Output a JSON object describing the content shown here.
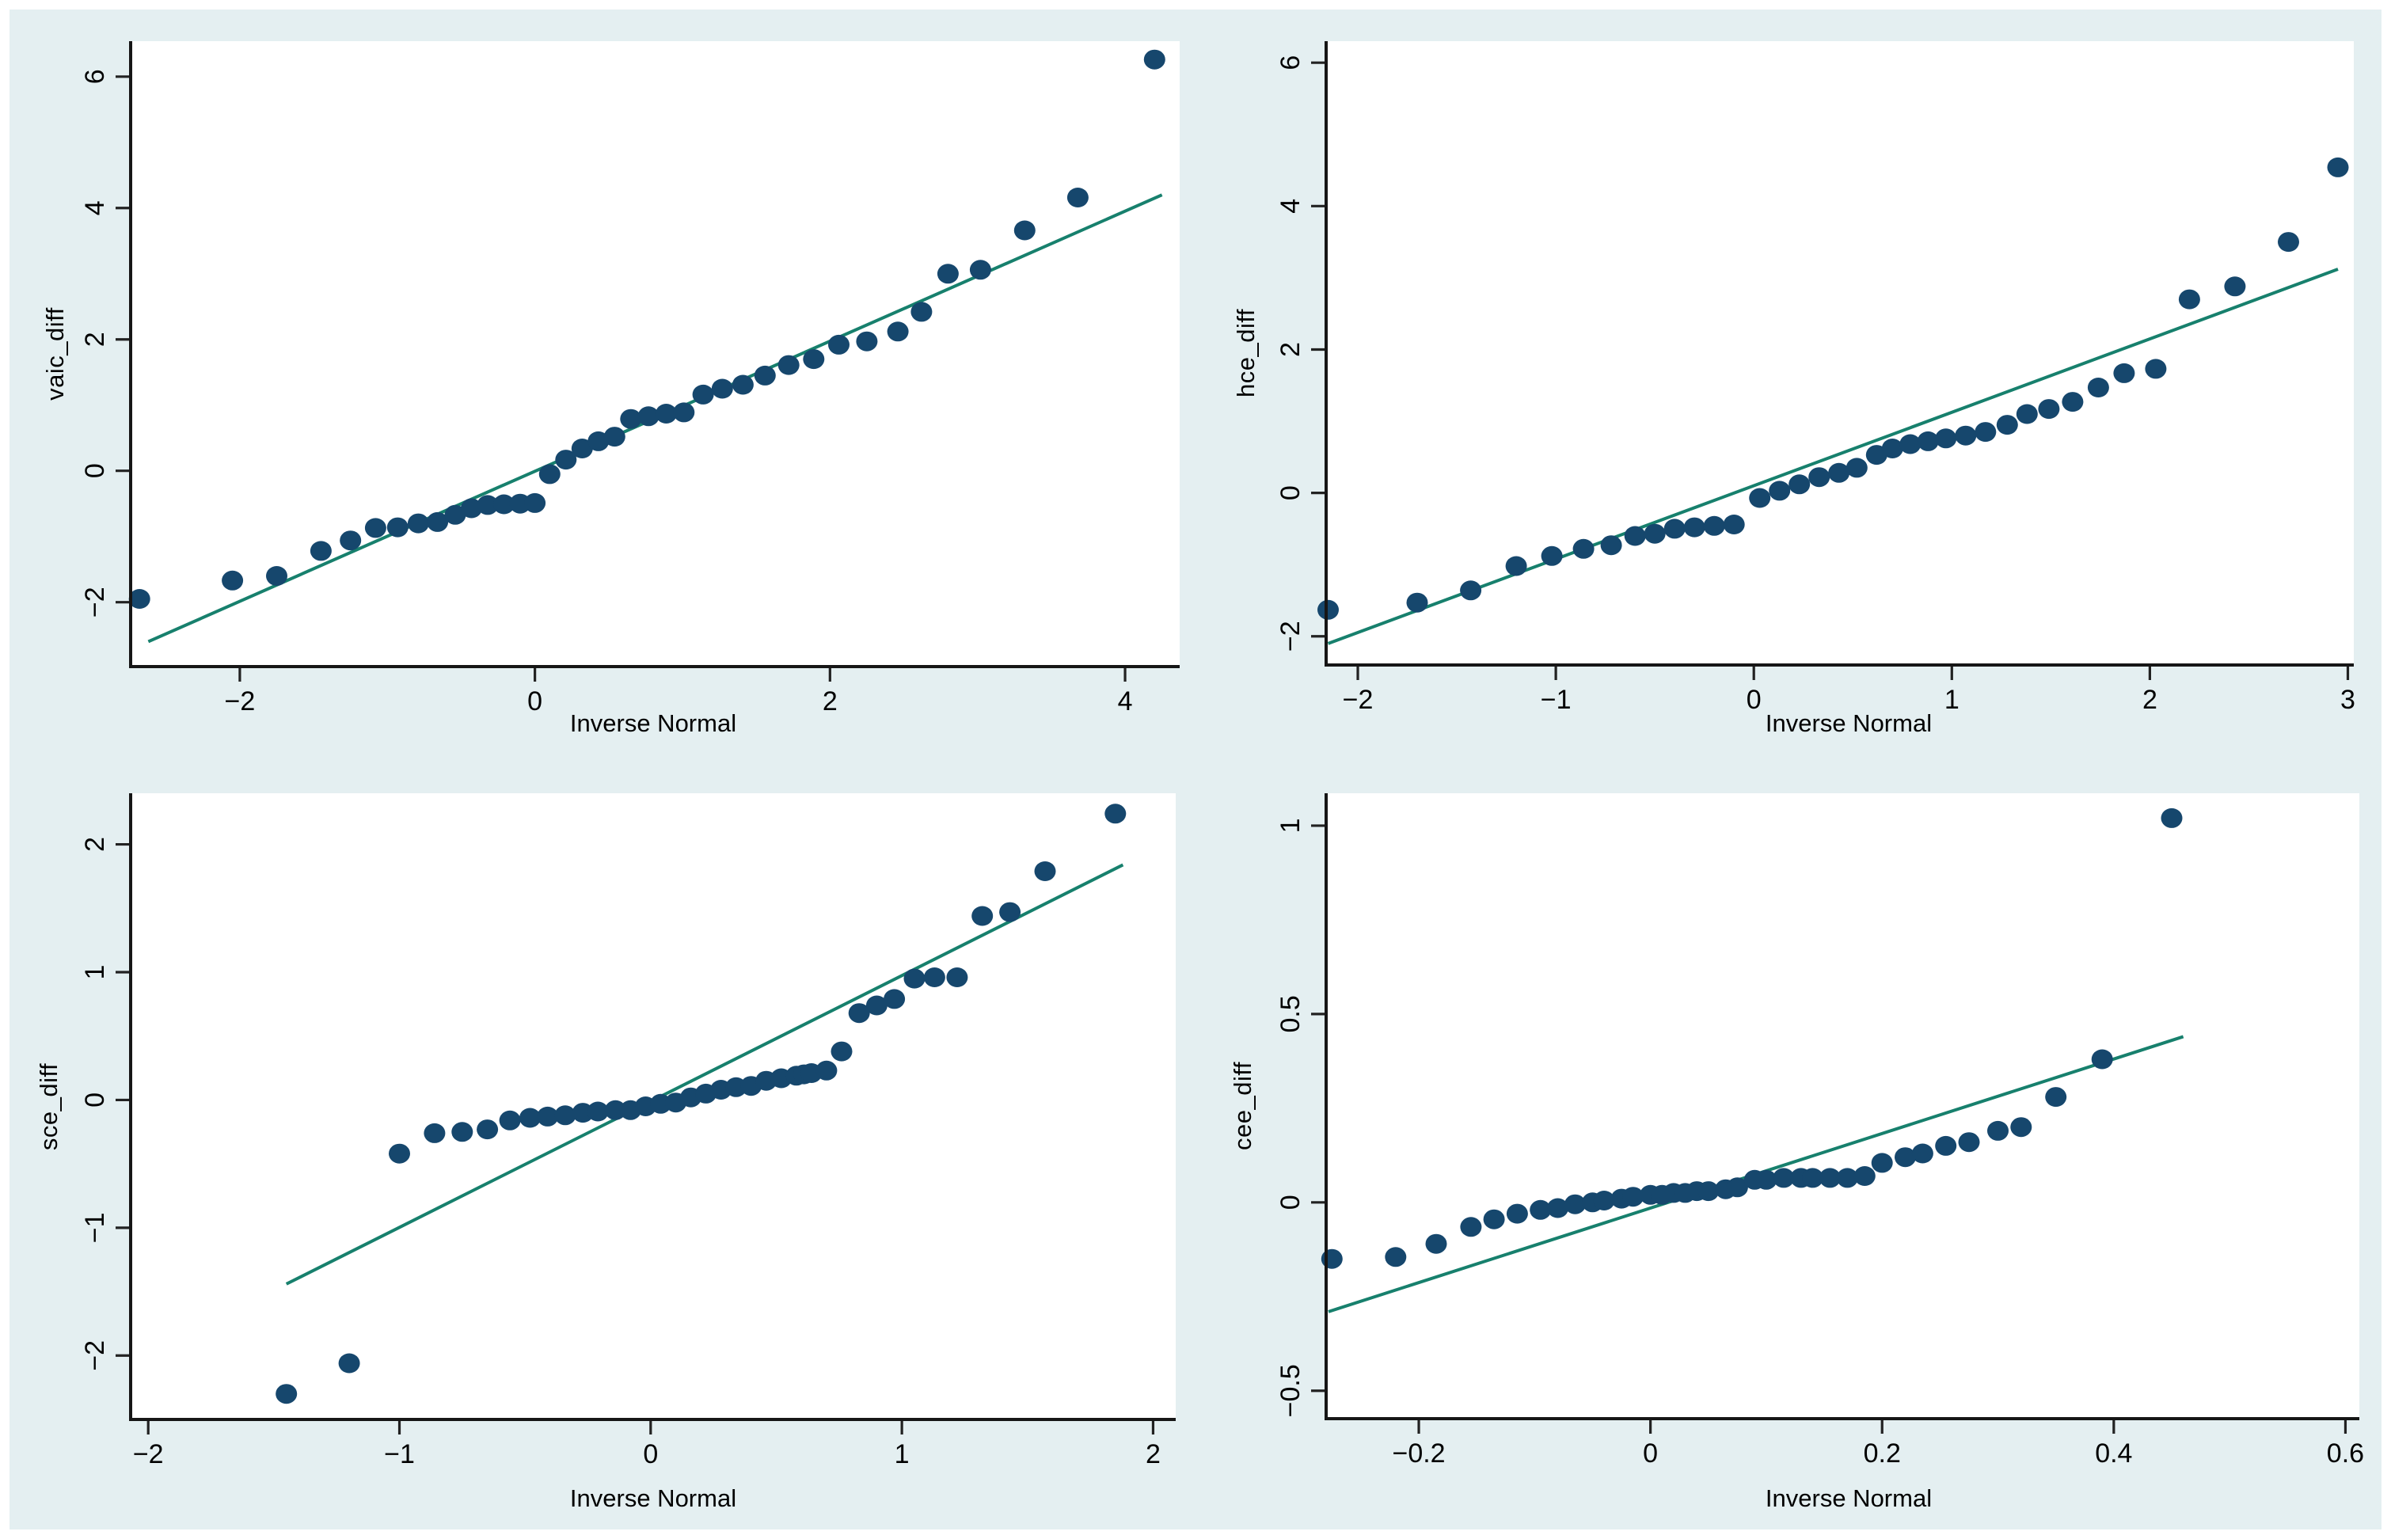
{
  "figure": {
    "background_color": "#e4eff1",
    "plot_background_color": "#ffffff",
    "axis_color": "#161616",
    "tick_color": "#222222",
    "marker_color": "#16476d",
    "line_color": "#17806d",
    "text_color": "#000000"
  },
  "chart_data": [
    {
      "type": "scatter",
      "name": "qnorm-vaic_diff",
      "ylabel": "vaic_diff",
      "xlabel": "Inverse Normal",
      "legend": "none",
      "grid": false,
      "xlim": [
        -2.74,
        4.37
      ],
      "ylim": [
        -2.98,
        6.54
      ],
      "xtick_values": [
        -2,
        0,
        2,
        4
      ],
      "xtick_labels": [
        "−2",
        "0",
        "2",
        "4"
      ],
      "ytick_values": [
        -2,
        0,
        2,
        4,
        6
      ],
      "ytick_labels": [
        "−2",
        "0",
        "2",
        "4",
        "6"
      ],
      "ref_line": {
        "x1": -2.62,
        "y1": -2.6,
        "x2": 4.25,
        "y2": 4.2
      },
      "points": [
        [
          -2.68,
          -1.95
        ],
        [
          -2.05,
          -1.67
        ],
        [
          -1.75,
          -1.6
        ],
        [
          -1.45,
          -1.22
        ],
        [
          -1.25,
          -1.06
        ],
        [
          -1.08,
          -0.87
        ],
        [
          -0.93,
          -0.86
        ],
        [
          -0.79,
          -0.8
        ],
        [
          -0.66,
          -0.78
        ],
        [
          -0.54,
          -0.67
        ],
        [
          -0.43,
          -0.57
        ],
        [
          -0.32,
          -0.52
        ],
        [
          -0.21,
          -0.51
        ],
        [
          -0.1,
          -0.5
        ],
        [
          0.0,
          -0.49
        ],
        [
          0.1,
          -0.05
        ],
        [
          0.21,
          0.17
        ],
        [
          0.32,
          0.34
        ],
        [
          0.43,
          0.45
        ],
        [
          0.54,
          0.52
        ],
        [
          0.65,
          0.79
        ],
        [
          0.77,
          0.83
        ],
        [
          0.89,
          0.87
        ],
        [
          1.01,
          0.89
        ],
        [
          1.14,
          1.16
        ],
        [
          1.27,
          1.25
        ],
        [
          1.41,
          1.31
        ],
        [
          1.56,
          1.45
        ],
        [
          1.72,
          1.61
        ],
        [
          1.89,
          1.7
        ],
        [
          2.06,
          1.92
        ],
        [
          2.25,
          1.97
        ],
        [
          2.46,
          2.12
        ],
        [
          2.62,
          2.42
        ],
        [
          2.8,
          3.0
        ],
        [
          3.02,
          3.06
        ],
        [
          3.32,
          3.66
        ],
        [
          3.68,
          4.16
        ],
        [
          4.2,
          6.26
        ]
      ]
    },
    {
      "type": "scatter",
      "name": "qnorm-hce_diff",
      "ylabel": "hce_diff",
      "xlabel": "Inverse Normal",
      "legend": "none",
      "grid": false,
      "xlim": [
        -2.16,
        3.03
      ],
      "ylim": [
        -2.4,
        6.3
      ],
      "xtick_values": [
        -2,
        -1,
        0,
        1,
        2,
        3
      ],
      "xtick_labels": [
        "−2",
        "−1",
        "0",
        "1",
        "2",
        "3"
      ],
      "ytick_values": [
        -2,
        0,
        2,
        4,
        6
      ],
      "ytick_labels": [
        "−2",
        "0",
        "2",
        "4",
        "6"
      ],
      "ref_line": {
        "x1": -2.15,
        "y1": -2.1,
        "x2": 2.95,
        "y2": 3.12
      },
      "points": [
        [
          -2.15,
          -1.63
        ],
        [
          -1.7,
          -1.53
        ],
        [
          -1.43,
          -1.36
        ],
        [
          -1.2,
          -1.02
        ],
        [
          -1.02,
          -0.88
        ],
        [
          -0.86,
          -0.78
        ],
        [
          -0.72,
          -0.73
        ],
        [
          -0.6,
          -0.6
        ],
        [
          -0.5,
          -0.57
        ],
        [
          -0.4,
          -0.5
        ],
        [
          -0.3,
          -0.48
        ],
        [
          -0.2,
          -0.46
        ],
        [
          -0.1,
          -0.44
        ],
        [
          0.03,
          -0.07
        ],
        [
          0.13,
          0.03
        ],
        [
          0.23,
          0.12
        ],
        [
          0.33,
          0.22
        ],
        [
          0.43,
          0.28
        ],
        [
          0.52,
          0.35
        ],
        [
          0.62,
          0.53
        ],
        [
          0.7,
          0.62
        ],
        [
          0.79,
          0.68
        ],
        [
          0.88,
          0.72
        ],
        [
          0.97,
          0.76
        ],
        [
          1.07,
          0.8
        ],
        [
          1.17,
          0.85
        ],
        [
          1.28,
          0.95
        ],
        [
          1.38,
          1.1
        ],
        [
          1.49,
          1.17
        ],
        [
          1.61,
          1.27
        ],
        [
          1.74,
          1.47
        ],
        [
          1.87,
          1.67
        ],
        [
          2.03,
          1.73
        ],
        [
          2.2,
          2.7
        ],
        [
          2.43,
          2.88
        ],
        [
          2.7,
          3.5
        ],
        [
          2.95,
          4.54
        ]
      ]
    },
    {
      "type": "scatter",
      "name": "qnorm-sce_diff",
      "ylabel": "sce_diff",
      "xlabel": "Inverse Normal",
      "legend": "none",
      "grid": false,
      "xlim": [
        -2.07,
        2.09
      ],
      "ylim": [
        -2.5,
        2.4
      ],
      "xtick_values": [
        -2,
        -1,
        0,
        1,
        2
      ],
      "xtick_labels": [
        "−2",
        "−1",
        "0",
        "1",
        "2"
      ],
      "ytick_values": [
        -2,
        -1,
        0,
        1,
        2
      ],
      "ytick_labels": [
        "−2",
        "−1",
        "0",
        "1",
        "2"
      ],
      "ref_line": {
        "x1": -1.45,
        "y1": -1.44,
        "x2": 1.88,
        "y2": 1.84
      },
      "points": [
        [
          -1.45,
          -2.3
        ],
        [
          -1.2,
          -2.06
        ],
        [
          -1.0,
          -0.42
        ],
        [
          -0.86,
          -0.26
        ],
        [
          -0.75,
          -0.25
        ],
        [
          -0.65,
          -0.23
        ],
        [
          -0.56,
          -0.16
        ],
        [
          -0.48,
          -0.14
        ],
        [
          -0.41,
          -0.13
        ],
        [
          -0.34,
          -0.12
        ],
        [
          -0.27,
          -0.1
        ],
        [
          -0.21,
          -0.09
        ],
        [
          -0.14,
          -0.08
        ],
        [
          -0.08,
          -0.08
        ],
        [
          -0.02,
          -0.05
        ],
        [
          0.04,
          -0.03
        ],
        [
          0.1,
          -0.02
        ],
        [
          0.16,
          0.02
        ],
        [
          0.22,
          0.05
        ],
        [
          0.28,
          0.08
        ],
        [
          0.34,
          0.1
        ],
        [
          0.4,
          0.11
        ],
        [
          0.46,
          0.15
        ],
        [
          0.52,
          0.17
        ],
        [
          0.58,
          0.19
        ],
        [
          0.61,
          0.2
        ],
        [
          0.64,
          0.21
        ],
        [
          0.7,
          0.23
        ],
        [
          0.76,
          0.38
        ],
        [
          0.83,
          0.68
        ],
        [
          0.9,
          0.74
        ],
        [
          0.97,
          0.79
        ],
        [
          1.05,
          0.95
        ],
        [
          1.13,
          0.96
        ],
        [
          1.22,
          0.96
        ],
        [
          1.32,
          1.44
        ],
        [
          1.43,
          1.47
        ],
        [
          1.57,
          1.79
        ],
        [
          1.85,
          2.24
        ]
      ]
    },
    {
      "type": "scatter",
      "name": "qnorm-cee_diff",
      "ylabel": "cee_diff",
      "xlabel": "Inverse Normal",
      "legend": "none",
      "grid": false,
      "xlim": [
        -0.28,
        0.612
      ],
      "ylim": [
        -0.574,
        1.086
      ],
      "xtick_values": [
        -0.2,
        0,
        0.2,
        0.4,
        0.6
      ],
      "xtick_labels": [
        "−0.2",
        "0",
        "0.2",
        "0.4",
        "0.6"
      ],
      "ytick_values": [
        -0.5,
        0,
        0.5,
        1
      ],
      "ytick_labels": [
        "−0.5",
        "0",
        "0.5",
        "1"
      ],
      "ref_line": {
        "x1": -0.278,
        "y1": -0.29,
        "x2": 0.46,
        "y2": 0.44
      },
      "points": [
        [
          -0.275,
          -0.15
        ],
        [
          -0.22,
          -0.145
        ],
        [
          -0.185,
          -0.11
        ],
        [
          -0.155,
          -0.065
        ],
        [
          -0.135,
          -0.045
        ],
        [
          -0.115,
          -0.03
        ],
        [
          -0.095,
          -0.02
        ],
        [
          -0.08,
          -0.015
        ],
        [
          -0.065,
          -0.005
        ],
        [
          -0.05,
          0.0
        ],
        [
          -0.04,
          0.005
        ],
        [
          -0.025,
          0.01
        ],
        [
          -0.015,
          0.015
        ],
        [
          0.0,
          0.02
        ],
        [
          0.01,
          0.02
        ],
        [
          0.02,
          0.025
        ],
        [
          0.03,
          0.025
        ],
        [
          0.04,
          0.03
        ],
        [
          0.05,
          0.03
        ],
        [
          0.065,
          0.035
        ],
        [
          0.075,
          0.04
        ],
        [
          0.09,
          0.06
        ],
        [
          0.1,
          0.06
        ],
        [
          0.115,
          0.065
        ],
        [
          0.13,
          0.065
        ],
        [
          0.14,
          0.065
        ],
        [
          0.155,
          0.065
        ],
        [
          0.17,
          0.065
        ],
        [
          0.185,
          0.07
        ],
        [
          0.2,
          0.105
        ],
        [
          0.22,
          0.12
        ],
        [
          0.235,
          0.13
        ],
        [
          0.255,
          0.15
        ],
        [
          0.275,
          0.16
        ],
        [
          0.3,
          0.19
        ],
        [
          0.32,
          0.2
        ],
        [
          0.35,
          0.28
        ],
        [
          0.39,
          0.38
        ],
        [
          0.45,
          1.02
        ]
      ]
    }
  ]
}
